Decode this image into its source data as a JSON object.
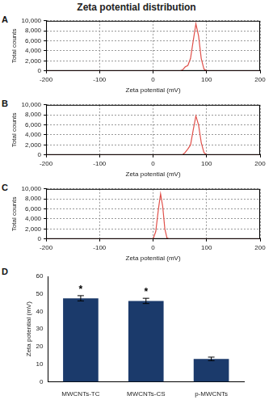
{
  "title": "Zeta potential distribution",
  "chart_data": [
    {
      "type": "line",
      "title": "A",
      "x_label": "Zeta potential (mV)",
      "y_label": "Total counts",
      "x": [
        -200,
        50,
        55,
        60,
        65,
        70,
        75,
        80,
        85,
        90,
        95,
        100,
        200
      ],
      "values": [
        0,
        0,
        200,
        800,
        1100,
        2500,
        6000,
        9400,
        7000,
        2500,
        400,
        0,
        0
      ],
      "color": "#e0504a",
      "xlim": [
        -200,
        200
      ],
      "xticks": [
        -200,
        -100,
        0,
        100,
        200
      ],
      "ylim": [
        0,
        10000
      ],
      "yticks": [
        0,
        {
          "value": 2000,
          "label": "2,000"
        },
        {
          "value": 4000,
          "label": "4,000"
        },
        {
          "value": 6000,
          "label": "6,000"
        },
        {
          "value": 8000,
          "label": "8,000"
        },
        {
          "value": 10000,
          "label": "10,000"
        }
      ],
      "grid": true
    },
    {
      "type": "line",
      "title": "B",
      "x_label": "Zeta potential (mV)",
      "y_label": "Total counts",
      "x": [
        -200,
        55,
        60,
        65,
        70,
        75,
        80,
        85,
        90,
        95,
        100,
        200
      ],
      "values": [
        0,
        0,
        500,
        1200,
        2000,
        5000,
        7800,
        6000,
        2500,
        500,
        0,
        0
      ],
      "color": "#e0504a",
      "xlim": [
        -200,
        200
      ],
      "xticks": [
        -200,
        -100,
        0,
        100,
        200
      ],
      "ylim": [
        0,
        10000
      ],
      "yticks": [
        0,
        {
          "value": 2000,
          "label": "2,000"
        },
        {
          "value": 4000,
          "label": "4,000"
        },
        {
          "value": 6000,
          "label": "6,000"
        },
        {
          "value": 8000,
          "label": "8,000"
        },
        {
          "value": 10000,
          "label": "10,000"
        }
      ],
      "grid": true
    },
    {
      "type": "line",
      "title": "C",
      "x_label": "Zeta potential (mV)",
      "y_label": "Total counts",
      "x": [
        -200,
        0,
        5,
        10,
        14,
        18,
        22,
        26,
        30,
        200
      ],
      "values": [
        0,
        0,
        1500,
        6000,
        9000,
        6500,
        2000,
        200,
        0,
        0
      ],
      "color": "#e0504a",
      "xlim": [
        -200,
        200
      ],
      "xticks": [
        -200,
        -100,
        0,
        100,
        200
      ],
      "ylim": [
        0,
        10000
      ],
      "yticks": [
        0,
        {
          "value": 2000,
          "label": "2,000"
        },
        {
          "value": 4000,
          "label": "4,000"
        },
        {
          "value": 6000,
          "label": "6,000"
        },
        {
          "value": 8000,
          "label": "8,000"
        },
        {
          "value": 10000,
          "label": "10,000"
        }
      ],
      "grid": true
    },
    {
      "type": "bar",
      "title": "D",
      "y_label": "Zeta potential (mV)",
      "categories": [
        "MWCNTs-TC",
        "MWCNTs-CS",
        "p-MWCNTs"
      ],
      "values": [
        47.5,
        46,
        13
      ],
      "errors": [
        1.5,
        1.5,
        1
      ],
      "annotations": [
        {
          "category": "MWCNTs-TC",
          "text": "*"
        },
        {
          "category": "MWCNTs-CS",
          "text": "*"
        }
      ],
      "color": "#1b3a6b",
      "ylim": [
        0,
        60
      ],
      "yticks": [
        0,
        10,
        20,
        30,
        40,
        50,
        60
      ],
      "grid": false
    }
  ]
}
